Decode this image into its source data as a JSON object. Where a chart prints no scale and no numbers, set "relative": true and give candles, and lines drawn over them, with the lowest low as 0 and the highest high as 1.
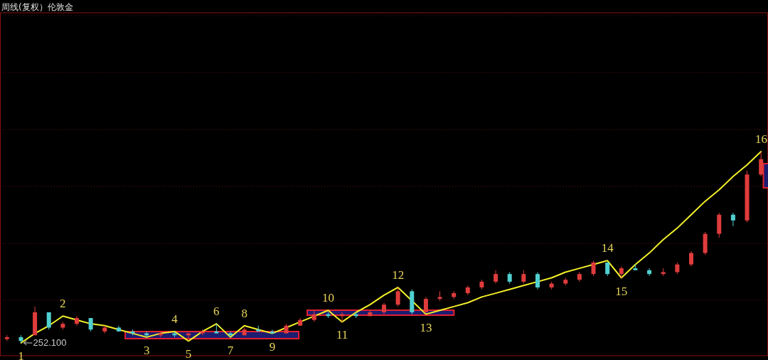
{
  "chart_data": {
    "type": "candlestick",
    "title": "周线(复权）伦敦金",
    "relative": true,
    "ref_lines": [
      {
        "axis": "y",
        "value": 0.223,
        "color": "#6a1010",
        "line_style": "dotted"
      },
      {
        "axis": "y",
        "value": 0.52,
        "color": "#6a1010",
        "line_style": "dotted"
      },
      {
        "axis": "y",
        "value": 0.818,
        "color": "#6a1010",
        "line_style": "dotted"
      },
      {
        "axis": "y",
        "value": 1.115,
        "color": "#6a1010",
        "line_style": "dotted"
      },
      {
        "axis": "y",
        "value": 1.413,
        "color": "#6a1010",
        "line_style": "dotted"
      },
      {
        "axis": "y",
        "value": 1.71,
        "color": "#6a1010",
        "line_style": "dotted"
      }
    ],
    "categories": [
      null,
      null,
      null,
      null,
      null,
      null,
      null,
      null,
      null,
      null,
      null,
      null,
      null,
      null,
      null,
      null,
      null,
      null,
      null,
      null,
      null,
      null,
      null,
      null,
      null,
      null,
      null,
      null,
      null,
      null,
      null,
      null,
      null,
      null,
      null,
      null,
      null,
      null,
      null,
      null,
      null,
      null,
      null,
      null,
      null,
      null,
      null,
      null,
      null,
      null,
      null,
      null,
      null,
      null,
      null
    ],
    "colors": [
      "#e03c3c",
      "#50d0d0",
      "#e03c3c",
      "#50d0d0",
      "#e03c3c",
      "#e03c3c",
      "#50d0d0",
      "#e03c3c",
      "#50d0d0",
      "#50d0d0",
      "#50d0d0",
      "#e03c3c",
      "#50d0d0",
      "#e03c3c",
      "#e03c3c",
      "#50d0d0",
      "#50d0d0",
      "#e03c3c",
      "#50d0d0",
      "#50d0d0",
      "#e03c3c",
      "#e03c3c",
      "#e03c3c",
      "#50d0d0",
      "#e03c3c",
      "#50d0d0",
      "#e03c3c",
      "#e03c3c",
      "#e03c3c",
      "#50d0d0",
      "#e03c3c",
      "#e03c3c",
      "#e03c3c",
      "#e03c3c",
      "#e03c3c",
      "#e03c3c",
      "#50d0d0",
      "#e03c3c",
      "#50d0d0",
      "#e03c3c",
      "#e03c3c",
      "#e03c3c",
      "#e03c3c",
      "#50d0d0",
      "#e03c3c",
      "#50d0d0",
      "#50d0d0",
      "#e03c3c",
      "#e03c3c",
      "#e03c3c",
      "#e03c3c",
      "#e03c3c",
      "#50d0d0",
      "#e03c3c",
      "#e03c3c"
    ],
    "ohlc": [
      [
        0.02,
        0.04,
        0.01,
        0.03
      ],
      [
        0.03,
        0.04,
        0,
        0.01
      ],
      [
        0.04,
        0.19,
        0.04,
        0.16
      ],
      [
        0.16,
        0.16,
        0.07,
        0.08
      ],
      [
        0.08,
        0.11,
        0.07,
        0.1
      ],
      [
        0.1,
        0.14,
        0.09,
        0.13
      ],
      [
        0.13,
        0.13,
        0.06,
        0.07
      ],
      [
        0.06,
        0.09,
        0.05,
        0.08
      ],
      [
        0.08,
        0.09,
        0.06,
        0.06
      ],
      [
        0.06,
        0.07,
        0.04,
        0.05
      ],
      [
        0.05,
        0.06,
        0.03,
        0.04
      ],
      [
        0.04,
        0.06,
        0.03,
        0.05
      ],
      [
        0.05,
        0.06,
        0.03,
        0.04
      ],
      [
        0.04,
        0.05,
        0.01,
        0.05
      ],
      [
        0.05,
        0.07,
        0.04,
        0.06
      ],
      [
        0.06,
        0.1,
        0.05,
        0.05
      ],
      [
        0.05,
        0.06,
        0.03,
        0.04
      ],
      [
        0.04,
        0.08,
        0.04,
        0.07
      ],
      [
        0.07,
        0.09,
        0.06,
        0.06
      ],
      [
        0.06,
        0.07,
        0.05,
        0.05
      ],
      [
        0.05,
        0.1,
        0.05,
        0.09
      ],
      [
        0.09,
        0.13,
        0.09,
        0.12
      ],
      [
        0.12,
        0.17,
        0.11,
        0.15
      ],
      [
        0.15,
        0.16,
        0.13,
        0.14
      ],
      [
        0.14,
        0.16,
        0.11,
        0.15
      ],
      [
        0.15,
        0.16,
        0.13,
        0.14
      ],
      [
        0.14,
        0.17,
        0.14,
        0.16
      ],
      [
        0.16,
        0.21,
        0.15,
        0.2
      ],
      [
        0.2,
        0.29,
        0.19,
        0.27
      ],
      [
        0.27,
        0.28,
        0.15,
        0.16
      ],
      [
        0.16,
        0.24,
        0.16,
        0.23
      ],
      [
        0.23,
        0.27,
        0.22,
        0.24
      ],
      [
        0.24,
        0.27,
        0.23,
        0.26
      ],
      [
        0.26,
        0.3,
        0.25,
        0.29
      ],
      [
        0.29,
        0.33,
        0.28,
        0.32
      ],
      [
        0.32,
        0.38,
        0.31,
        0.36
      ],
      [
        0.36,
        0.37,
        0.31,
        0.32
      ],
      [
        0.32,
        0.38,
        0.31,
        0.36
      ],
      [
        0.36,
        0.37,
        0.28,
        0.29
      ],
      [
        0.29,
        0.32,
        0.28,
        0.31
      ],
      [
        0.31,
        0.34,
        0.3,
        0.33
      ],
      [
        0.33,
        0.37,
        0.32,
        0.36
      ],
      [
        0.36,
        0.43,
        0.35,
        0.42
      ],
      [
        0.42,
        0.42,
        0.35,
        0.36
      ],
      [
        0.36,
        0.4,
        0.34,
        0.39
      ],
      [
        0.39,
        0.41,
        0.38,
        0.38
      ],
      [
        0.38,
        0.39,
        0.35,
        0.36
      ],
      [
        0.36,
        0.39,
        0.35,
        0.37
      ],
      [
        0.37,
        0.42,
        0.36,
        0.41
      ],
      [
        0.41,
        0.48,
        0.4,
        0.47
      ],
      [
        0.47,
        0.58,
        0.46,
        0.57
      ],
      [
        0.57,
        0.68,
        0.55,
        0.67
      ],
      [
        0.67,
        0.68,
        0.61,
        0.64
      ],
      [
        0.64,
        0.9,
        0.63,
        0.88
      ],
      [
        0.88,
        1.0,
        0.87,
        0.96
      ]
    ],
    "series": [
      {
        "type": "line",
        "color": "#f2f02a",
        "values": [
          null,
          0,
          0.05,
          0.09,
          0.14,
          0.12,
          0.1,
          0.09,
          0.07,
          0.05,
          0.03,
          0.05,
          0.06,
          0.01,
          0.06,
          0.1,
          0.03,
          0.09,
          0.07,
          0.05,
          0.08,
          0.11,
          0.14,
          0.17,
          0.11,
          0.16,
          0.2,
          0.25,
          0.29,
          0.22,
          0.15,
          0.17,
          0.19,
          0.21,
          0.24,
          0.26,
          0.28,
          0.3,
          0.32,
          0.34,
          0.37,
          0.39,
          0.41,
          0.43,
          0.34,
          0.41,
          0.47,
          0.54,
          0.6,
          0.67,
          0.74,
          0.8,
          0.87,
          0.93,
          1.0
        ]
      }
    ],
    "annotations": [
      "252.100",
      "1",
      "2",
      "3",
      "4",
      "5",
      "6",
      "7",
      "8",
      "9",
      "10",
      "11",
      "12",
      "13",
      "14",
      "15",
      "16"
    ]
  }
}
